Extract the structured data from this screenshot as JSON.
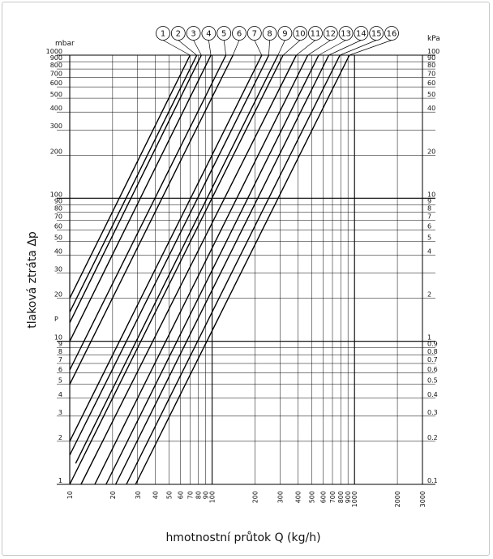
{
  "chart_data": {
    "type": "line",
    "title": "",
    "xlabel": "hmotnostní průtok Q (kg/h)",
    "ylabel": "tlaková ztráta  Δp",
    "ylabel_left_unit": "mbar",
    "ylabel_right_unit": "kPa",
    "p_marker": "P",
    "x_scale": "log",
    "y_scale": "log",
    "xlim": [
      10,
      3000
    ],
    "ylim": [
      1,
      1000
    ],
    "grid": true,
    "x_ticks": [
      10,
      20,
      30,
      40,
      50,
      60,
      70,
      80,
      90,
      100,
      200,
      300,
      400,
      500,
      600,
      700,
      800,
      900,
      1000,
      2000,
      3000
    ],
    "x_tick_labels": [
      "10",
      "20",
      "30",
      "40",
      "50",
      "60",
      "70",
      "80",
      "90",
      "100",
      "200",
      "300",
      "400",
      "500",
      "600",
      "700",
      "800",
      "900",
      "1000",
      "2000",
      "3000"
    ],
    "y_left_ticks": [
      1,
      2,
      3,
      4,
      5,
      6,
      7,
      8,
      9,
      10,
      20,
      30,
      40,
      50,
      60,
      70,
      80,
      90,
      100,
      200,
      300,
      400,
      500,
      600,
      700,
      800,
      900,
      1000
    ],
    "y_left_tick_labels": [
      "1",
      "2",
      "3",
      "4",
      "5",
      "6",
      "7",
      "8",
      "9",
      "10",
      "20",
      "30",
      "40",
      "50",
      "60",
      "70",
      "80",
      "90",
      "100",
      "200",
      "300",
      "400",
      "500",
      "600",
      "700",
      "800",
      "900",
      "1000"
    ],
    "y_right_ticks": [
      1,
      2,
      3,
      4,
      5,
      6,
      7,
      8,
      9,
      10,
      20,
      40,
      50,
      60,
      70,
      80,
      90,
      100,
      200,
      400,
      500,
      600,
      700,
      800,
      900,
      1000
    ],
    "y_right_tick_labels": [
      "0.1",
      "0.2",
      "0.3",
      "0.4",
      "0.5",
      "0.6",
      "0.7",
      "0.8",
      "0.9",
      "1",
      "2",
      "4",
      "5",
      "6",
      "7",
      "8",
      "9",
      "10",
      "20",
      "40",
      "50",
      "60",
      "70",
      "80",
      "90",
      "100"
    ],
    "series": [
      {
        "name": "1",
        "x": [
          10,
          70
        ],
        "y": [
          20,
          1000
        ]
      },
      {
        "name": "2",
        "x": [
          10,
          78
        ],
        "y": [
          16,
          1000
        ]
      },
      {
        "name": "3",
        "x": [
          10,
          84
        ],
        "y": [
          13.5,
          1000
        ]
      },
      {
        "name": "4",
        "x": [
          10,
          98
        ],
        "y": [
          10,
          1000
        ]
      },
      {
        "name": "5",
        "x": [
          10,
          125
        ],
        "y": [
          6.3,
          1000
        ]
      },
      {
        "name": "6",
        "x": [
          10,
          140
        ],
        "y": [
          5,
          1000
        ]
      },
      {
        "name": "7",
        "x": [
          10,
          223
        ],
        "y": [
          2,
          1000
        ]
      },
      {
        "name": "8",
        "x": [
          10,
          250
        ],
        "y": [
          1.6,
          1000
        ]
      },
      {
        "name": "9",
        "x": [
          11,
          290
        ],
        "y": [
          1.4,
          1000
        ]
      },
      {
        "name": "10",
        "x": [
          10,
          315
        ],
        "y": [
          1,
          1000
        ]
      },
      {
        "name": "11",
        "x": [
          12,
          390
        ],
        "y": [
          1,
          1000
        ]
      },
      {
        "name": "12",
        "x": [
          15,
          470
        ],
        "y": [
          1,
          1000
        ]
      },
      {
        "name": "13",
        "x": [
          18,
          560
        ],
        "y": [
          1,
          1000
        ]
      },
      {
        "name": "14",
        "x": [
          21,
          660
        ],
        "y": [
          1,
          1000
        ]
      },
      {
        "name": "15",
        "x": [
          25,
          790
        ],
        "y": [
          1,
          1000
        ]
      },
      {
        "name": "16",
        "x": [
          29,
          920
        ],
        "y": [
          1,
          1000
        ]
      }
    ]
  }
}
